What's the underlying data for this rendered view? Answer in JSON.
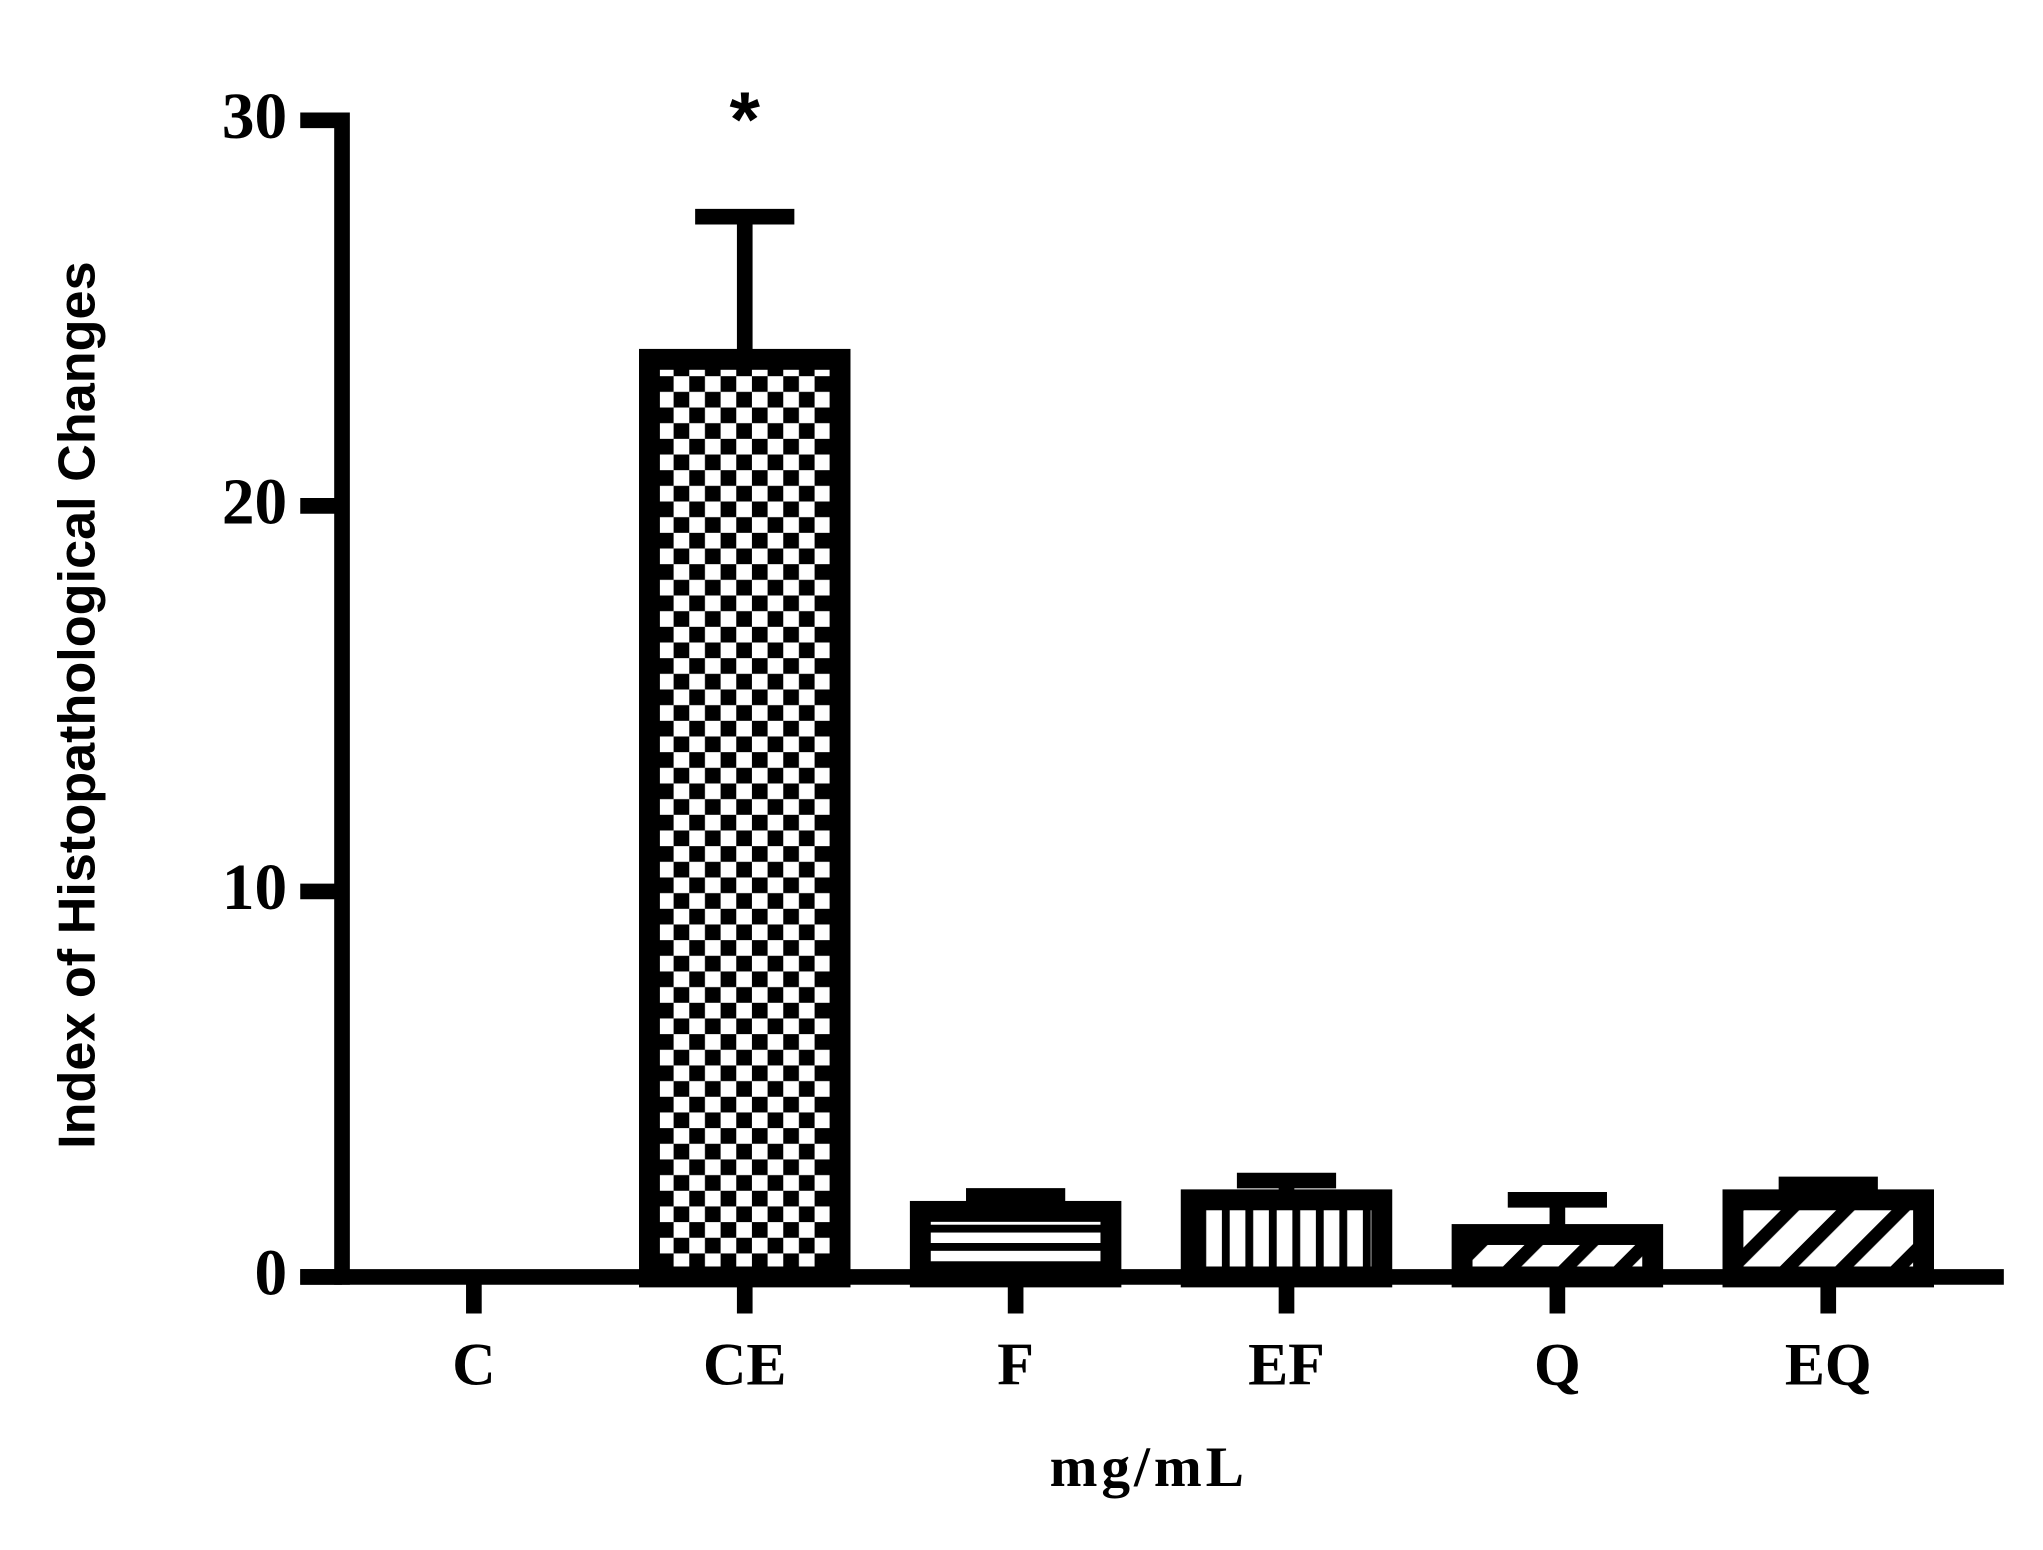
{
  "chart_data": {
    "type": "bar",
    "y_label": "Index of Histopathological Changes",
    "x_label": "mg/mL",
    "categories": [
      "C",
      "CE",
      "F",
      "EF",
      "Q",
      "EQ"
    ],
    "values": [
      0,
      23.8,
      1.7,
      2.0,
      1.1,
      2.0
    ],
    "errors": [
      0,
      3.7,
      0.4,
      0.5,
      0.9,
      0.4
    ],
    "patterns": [
      "none",
      "checker",
      "hlines",
      "vlines",
      "diag",
      "diag"
    ],
    "annotations": [
      {
        "category": 1,
        "text": "*"
      }
    ],
    "color": "#000000",
    "ylim": [
      0,
      30
    ],
    "yticks": [
      0,
      10,
      20,
      30
    ],
    "grid": false
  }
}
